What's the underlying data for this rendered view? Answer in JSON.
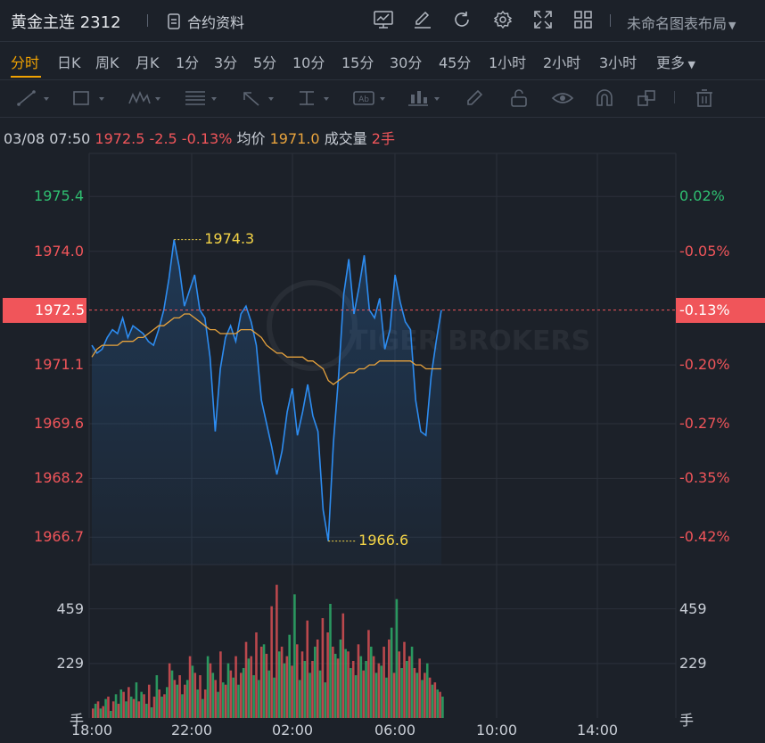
{
  "header": {
    "symbol_title": "黄金主连 2312",
    "contract_info_label": "合约资料",
    "layout_label": "未命名图表布局",
    "icons": [
      "chart-area-icon",
      "edit-icon",
      "refresh-icon",
      "settings-icon",
      "fullscreen-icon",
      "grid-layout-icon"
    ]
  },
  "timeframes": [
    {
      "label": "分时",
      "active": true
    },
    {
      "label": "日K"
    },
    {
      "label": "周K"
    },
    {
      "label": "月K"
    },
    {
      "label": "1分"
    },
    {
      "label": "3分"
    },
    {
      "label": "5分"
    },
    {
      "label": "10分"
    },
    {
      "label": "15分"
    },
    {
      "label": "30分"
    },
    {
      "label": "45分"
    },
    {
      "label": "1小时"
    },
    {
      "label": "2小时"
    },
    {
      "label": "3小时"
    },
    {
      "label": "更多"
    }
  ],
  "drawing_tools": [
    "trend-line-icon",
    "rectangle-icon",
    "pattern-icon",
    "fibonacci-icon",
    "arrow-icon",
    "price-range-icon",
    "text-icon",
    "measure-icon",
    "pencil-icon",
    "lock-icon",
    "eye-icon",
    "magnet-icon",
    "layers-icon",
    "trash-icon"
  ],
  "info": {
    "datetime": "03/08 07:50",
    "price": "1972.5",
    "change": "-2.5",
    "change_pct": "-0.13%",
    "avg_label": "均价",
    "avg_value": "1971.0",
    "volume_label": "成交量",
    "volume_value": "2手"
  },
  "watermark": "TIGER BROKERS",
  "colors": {
    "background": "#1c2129",
    "up": "#2fbf71",
    "down": "#f0555a",
    "price_line": "#2d8cf0",
    "avg_line": "#e8a33d",
    "accent": "#f0a202",
    "marker_text": "#f5d547"
  },
  "chart_data": {
    "type": "line",
    "title": "",
    "series": [
      {
        "name": "",
        "values": [
          1971.6,
          1971.4,
          1971.5,
          1971.8,
          1972.0,
          1971.9,
          1972.3,
          1971.8,
          1972.1,
          1972.0,
          1971.9,
          1971.7,
          1971.6,
          1972.0,
          1972.5,
          1973.3,
          1974.3,
          1973.6,
          1972.6,
          1973.0,
          1973.4,
          1972.5,
          1972.3,
          1971.3,
          1969.4,
          1971.0,
          1971.8,
          1972.1,
          1971.7,
          1972.4,
          1972.6,
          1972.2,
          1971.6,
          1970.2,
          1969.6,
          1969.0,
          1968.3,
          1968.9,
          1969.9,
          1970.5,
          1969.3,
          1969.9,
          1970.6,
          1969.8,
          1969.4,
          1967.4,
          1966.6,
          1969.1,
          1970.8,
          1972.9,
          1973.8,
          1972.4,
          1973.1,
          1973.9,
          1972.5,
          1972.3,
          1972.8,
          1971.5,
          1972.0,
          1973.4,
          1972.7,
          1972.2,
          1972.0,
          1970.2,
          1969.4,
          1969.3,
          1970.8,
          1971.7,
          1972.5
        ]
      },
      {
        "name": "均价",
        "values": [
          1971.3,
          1971.5,
          1971.6,
          1971.6,
          1971.6,
          1971.6,
          1971.7,
          1971.7,
          1971.7,
          1971.8,
          1971.8,
          1971.9,
          1972.0,
          1972.1,
          1972.1,
          1972.2,
          1972.3,
          1972.3,
          1972.4,
          1972.4,
          1972.3,
          1972.2,
          1972.1,
          1972.0,
          1972.0,
          1971.9,
          1971.9,
          1971.9,
          1971.9,
          1972.0,
          1972.0,
          1972.0,
          1971.9,
          1971.8,
          1971.6,
          1971.5,
          1971.4,
          1971.4,
          1971.3,
          1971.3,
          1971.3,
          1971.3,
          1971.2,
          1971.2,
          1971.1,
          1971.0,
          1970.7,
          1970.6,
          1970.7,
          1970.8,
          1970.9,
          1970.9,
          1971.0,
          1971.0,
          1971.1,
          1971.1,
          1971.2,
          1971.2,
          1971.2,
          1971.2,
          1971.2,
          1971.2,
          1971.2,
          1971.1,
          1971.1,
          1971.0,
          1971.0,
          1971.0,
          1971.0
        ]
      }
    ],
    "x_tick_labels": [
      "18:00",
      "22:00",
      "02:00",
      "06:00",
      "10:00",
      "14:00"
    ],
    "y_tick_labels_left": [
      "1975.4",
      "1974.0",
      "1971.1",
      "1969.6",
      "1968.2",
      "1966.7"
    ],
    "y_tick_labels_right": [
      "0.02%",
      "-0.05%",
      "-0.20%",
      "-0.27%",
      "-0.35%",
      "-0.42%"
    ],
    "ylim": [
      1966.0,
      1976.5
    ],
    "prev_close": 1975.0,
    "current_price_label": "1972.5",
    "current_pct_label": "-0.13%",
    "high_marker": "1974.3",
    "low_marker": "1966.6",
    "volume": {
      "tick_labels": [
        "459",
        "229"
      ],
      "unit_label": "手",
      "ylim": [
        0,
        600
      ],
      "up_values": [
        60,
        40,
        80,
        30,
        100,
        120,
        70,
        90,
        150,
        110,
        60,
        45,
        180,
        90,
        130,
        200,
        140,
        100,
        160,
        220,
        120,
        80,
        260,
        190,
        110,
        150,
        230,
        170,
        140,
        210,
        250,
        180,
        160,
        310,
        200,
        170,
        280,
        230,
        350,
        520,
        160,
        240,
        190,
        300,
        200,
        150,
        480,
        270,
        330,
        290,
        210,
        180,
        260,
        240,
        300,
        190,
        220,
        170,
        380,
        500,
        210,
        240,
        300,
        190,
        160,
        230,
        140,
        120,
        90
      ],
      "down_values": [
        40,
        70,
        50,
        90,
        70,
        60,
        110,
        130,
        80,
        70,
        100,
        140,
        90,
        120,
        100,
        230,
        160,
        180,
        140,
        260,
        190,
        180,
        120,
        230,
        160,
        280,
        140,
        200,
        260,
        190,
        320,
        260,
        360,
        300,
        270,
        470,
        560,
        300,
        260,
        220,
        310,
        280,
        410,
        240,
        330,
        420,
        360,
        300,
        250,
        440,
        280,
        240,
        310,
        200,
        370,
        260,
        230,
        300,
        330,
        190,
        280,
        320,
        260,
        210,
        250,
        190,
        170,
        150,
        110
      ]
    }
  }
}
